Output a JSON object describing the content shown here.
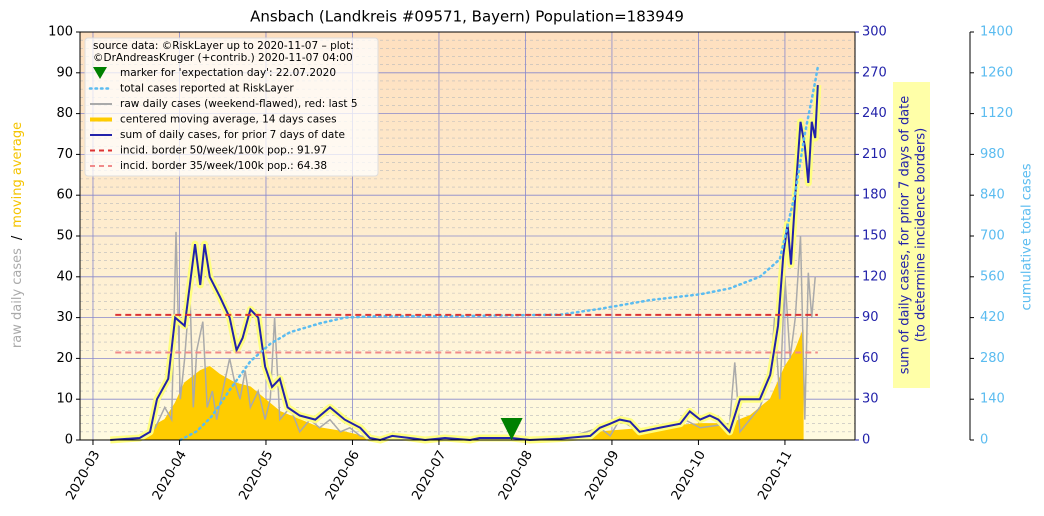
{
  "chart_data": {
    "type": "line",
    "title": "Ansbach (Landkreis #09571, Bayern) Population=183949",
    "ylabel_parts": [
      {
        "text": "raw daily cases",
        "color": "#aaaaaa"
      },
      {
        "text": "/",
        "color": "#000000"
      },
      {
        "text": "moving average",
        "color": "#f5c400"
      }
    ],
    "y2label": [
      "sum of daily cases, for prior 7 days of date",
      "(to determine incidence borders)"
    ],
    "y3label": "cumulative total cases",
    "legend_header": [
      "source data: ©RiskLayer up to 2020-11-07 – plot:",
      "©DrAndreasKruger (+contrib.) 2020-11-07 04:00"
    ],
    "xlim": [
      2.85,
      11.81
    ],
    "xticks": [
      {
        "value": 3,
        "label": "2020-03"
      },
      {
        "value": 4,
        "label": "2020-04"
      },
      {
        "value": 5,
        "label": "2020-05"
      },
      {
        "value": 6,
        "label": "2020-06"
      },
      {
        "value": 7,
        "label": "2020-07"
      },
      {
        "value": 8,
        "label": "2020-08"
      },
      {
        "value": 9,
        "label": "2020-09"
      },
      {
        "value": 10,
        "label": "2020-10"
      },
      {
        "value": 11,
        "label": "2020-11"
      }
    ],
    "ylim": [
      0,
      100
    ],
    "yticks": [
      0,
      10,
      20,
      30,
      40,
      50,
      60,
      70,
      80,
      90,
      100
    ],
    "y2lim": [
      0,
      300
    ],
    "y2ticks": [
      0,
      30,
      60,
      90,
      120,
      150,
      180,
      210,
      240,
      270,
      300
    ],
    "y3lim": [
      0,
      1400
    ],
    "y3ticks": [
      0,
      140,
      280,
      420,
      560,
      700,
      840,
      980,
      1120,
      1260,
      1400
    ],
    "grid": true,
    "marker": {
      "name": "marker for 'expectation day': 22.07.2020",
      "color": "#008000",
      "x": 7.84,
      "y": 0
    },
    "series": [
      {
        "name": "total cases reported at RiskLayer",
        "color": "#5bbcf0",
        "style": "dotted",
        "axis": "y3",
        "x": [
          4.01,
          4.2,
          4.37,
          4.6,
          4.82,
          5.05,
          5.28,
          5.62,
          5.91,
          6.32,
          7.13,
          8.4,
          8.86,
          9.44,
          10.02,
          10.36,
          10.71,
          10.94,
          11.12,
          11.23,
          11.35,
          11.38
        ],
        "values": [
          0,
          30,
          80,
          180,
          270,
          330,
          370,
          400,
          420,
          425,
          425,
          430,
          450,
          480,
          500,
          520,
          560,
          620,
          850,
          1050,
          1230,
          1280
        ]
      },
      {
        "name": "raw daily cases (weekend-flawed), red: last 5",
        "color": "#aaaaaa",
        "style": "line",
        "axis": "y",
        "x": [
          3.2,
          3.54,
          3.72,
          3.83,
          3.91,
          3.96,
          4.01,
          4.06,
          4.12,
          4.16,
          4.2,
          4.27,
          4.32,
          4.38,
          4.43,
          4.53,
          4.58,
          4.64,
          4.7,
          4.76,
          4.82,
          4.91,
          4.99,
          5.05,
          5.1,
          5.16,
          5.28,
          5.39,
          5.51,
          5.62,
          5.74,
          5.86,
          5.97,
          6.09,
          6.32,
          6.78,
          7.71,
          8.4,
          8.86,
          8.98,
          9.09,
          9.32,
          9.55,
          9.84,
          10.02,
          10.36,
          10.42,
          10.48,
          10.71,
          10.83,
          10.88,
          10.94,
          11.0,
          11.06,
          11.12,
          11.18,
          11.23,
          11.27,
          11.31,
          11.35
        ],
        "values": [
          0,
          0,
          3,
          8,
          5,
          51,
          10,
          20,
          37,
          8,
          22,
          29,
          8,
          12,
          5,
          15,
          20,
          14,
          10,
          17,
          8,
          12,
          5,
          10,
          30,
          5,
          8,
          2,
          5,
          3,
          5,
          2,
          3,
          1,
          0,
          0,
          0,
          0,
          3,
          1,
          5,
          2,
          3,
          5,
          3,
          4,
          19,
          2,
          8,
          15,
          30,
          10,
          40,
          20,
          30,
          50,
          5,
          41,
          30,
          40
        ]
      },
      {
        "name": "centered moving average, 14 days cases",
        "color": "#ffcc00",
        "style": "area",
        "axis": "y",
        "x": [
          3.2,
          3.54,
          3.66,
          3.83,
          3.95,
          4.06,
          4.24,
          4.35,
          4.47,
          4.64,
          4.82,
          4.99,
          5.16,
          5.39,
          5.62,
          5.91,
          6.2,
          6.55,
          7.13,
          7.71,
          8.4,
          8.86,
          9.44,
          10.02,
          10.36,
          10.6,
          10.83,
          11.0,
          11.12,
          11.21
        ],
        "values": [
          0,
          0.3,
          3,
          5,
          9,
          14,
          17,
          18,
          16,
          14,
          13,
          10,
          7,
          5,
          3,
          2,
          0.5,
          0.2,
          0.2,
          0.2,
          0.5,
          2,
          3,
          4,
          4,
          6,
          10,
          18,
          22,
          27
        ]
      },
      {
        "name": "sum of daily cases, for prior 7 days of date",
        "color": "#2222aa",
        "style": "line",
        "axis": "y2",
        "x": [
          3.2,
          3.54,
          3.66,
          3.74,
          3.87,
          3.95,
          4.06,
          4.18,
          4.24,
          4.29,
          4.35,
          4.47,
          4.58,
          4.66,
          4.73,
          4.82,
          4.91,
          4.99,
          5.07,
          5.16,
          5.25,
          5.39,
          5.57,
          5.74,
          5.91,
          6.09,
          6.2,
          6.32,
          6.46,
          6.66,
          6.84,
          7.07,
          7.36,
          7.47,
          7.71,
          7.84,
          8.05,
          8.4,
          8.75,
          8.86,
          8.98,
          9.09,
          9.21,
          9.32,
          9.55,
          9.79,
          9.9,
          10.02,
          10.13,
          10.23,
          10.36,
          10.48,
          10.71,
          10.83,
          10.92,
          10.98,
          11.03,
          11.07,
          11.12,
          11.18,
          11.23,
          11.27,
          11.31,
          11.35,
          11.38
        ],
        "values": [
          0,
          1.5,
          6,
          30,
          45,
          90,
          84,
          144,
          114,
          144,
          120,
          105,
          90,
          66,
          75,
          96,
          90,
          54,
          39,
          45,
          24,
          18,
          15,
          24,
          15,
          9,
          1.5,
          0,
          3,
          1.5,
          0,
          1.5,
          0,
          1.5,
          1.5,
          1.5,
          0,
          1,
          3,
          9,
          12,
          15,
          13.5,
          6,
          9,
          12,
          21,
          15,
          18,
          15,
          6,
          30,
          30,
          48,
          84,
          135,
          159,
          129,
          180,
          234,
          216,
          189,
          234,
          222,
          261
        ]
      }
    ],
    "reference_lines": [
      {
        "name": "incid. border 50/week/100k pop.: 91.97",
        "color": "#dd3333",
        "value": 91.97,
        "axis": "y2"
      },
      {
        "name": "incid. border 35/week/100k pop.: 64.38",
        "color": "#f08a8a",
        "value": 64.38,
        "axis": "y2"
      }
    ]
  }
}
